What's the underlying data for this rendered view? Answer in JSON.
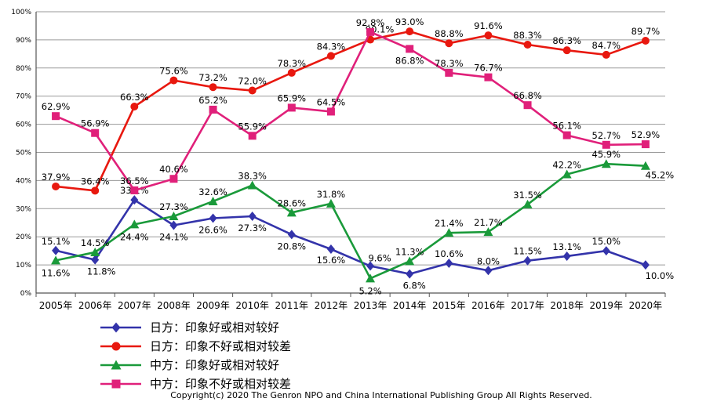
{
  "chart_data": {
    "type": "line",
    "title": "",
    "xlabel": "",
    "ylabel": "",
    "ylim": [
      0,
      100
    ],
    "y_ticks": [
      "0%",
      "10%",
      "20%",
      "30%",
      "40%",
      "50%",
      "60%",
      "70%",
      "80%",
      "90%",
      "100%"
    ],
    "categories": [
      "2005年",
      "2006年",
      "2007年",
      "2008年",
      "2009年",
      "2010年",
      "2011年",
      "2012年",
      "2013年",
      "2014年",
      "2015年",
      "2016年",
      "2017年",
      "2018年",
      "2019年",
      "2020年"
    ],
    "grid": true,
    "legend_position": "bottom-left",
    "series": [
      {
        "name": "日方：印象好或相对较好",
        "color": "#3333aa",
        "marker": "diamond",
        "values": [
          15.1,
          11.8,
          33.1,
          24.1,
          26.6,
          27.3,
          20.8,
          15.6,
          9.6,
          6.8,
          10.6,
          8.0,
          11.5,
          13.1,
          15.0,
          10.0
        ],
        "labels": [
          "15.1%",
          "11.8%",
          "33.1%",
          "24.1%",
          "26.6%",
          "27.3%",
          "20.8%",
          "15.6%",
          "9.6%",
          "6.8%",
          "10.6%",
          "8.0%",
          "11.5%",
          "13.1%",
          "15.0%",
          "10.0%"
        ]
      },
      {
        "name": "日方：印象不好或相对较差",
        "color": "#e8180f",
        "marker": "circle",
        "values": [
          37.9,
          36.4,
          66.3,
          75.6,
          73.2,
          72.0,
          78.3,
          84.3,
          90.1,
          93.0,
          88.8,
          91.6,
          88.3,
          86.3,
          84.7,
          89.7
        ],
        "labels": [
          "37.9%",
          "36.4%",
          "66.3%",
          "75.6%",
          "73.2%",
          "72.0%",
          "78.3%",
          "84.3%",
          "90.1%",
          "93.0%",
          "88.8%",
          "91.6%",
          "88.3%",
          "86.3%",
          "84.7%",
          "89.7%"
        ]
      },
      {
        "name": "中方：印象好或相对较好",
        "color": "#1a9a3a",
        "marker": "triangle",
        "values": [
          11.6,
          14.5,
          24.4,
          27.3,
          32.6,
          38.3,
          28.6,
          31.8,
          5.2,
          11.3,
          21.4,
          21.7,
          31.5,
          42.2,
          45.9,
          45.2
        ],
        "labels": [
          "11.6%",
          "14.5%",
          "24.4%",
          "27.3%",
          "32.6%",
          "38.3%",
          "28.6%",
          "31.8%",
          "5.2%",
          "11.3%",
          "21.4%",
          "21.7%",
          "31.5%",
          "42.2%",
          "45.9%",
          "45.2%"
        ]
      },
      {
        "name": "中方：印象不好或相对较差",
        "color": "#e0207a",
        "marker": "square",
        "values": [
          62.9,
          56.9,
          36.5,
          40.6,
          65.2,
          55.9,
          65.9,
          64.5,
          92.8,
          86.8,
          78.3,
          76.7,
          66.8,
          56.1,
          52.7,
          52.9
        ],
        "labels": [
          "62.9%",
          "56.9%",
          "36.5%",
          "40.6%",
          "65.2%",
          "55.9%",
          "65.9%",
          "64.5%",
          "92.8%",
          "86.8%",
          "78.3%",
          "76.7%",
          "66.8%",
          "56.1%",
          "52.7%",
          "52.9%"
        ]
      }
    ],
    "copyright": "Copyright(c) 2020 The Genron NPO and China International Publishing Group All Rights Reserved."
  }
}
